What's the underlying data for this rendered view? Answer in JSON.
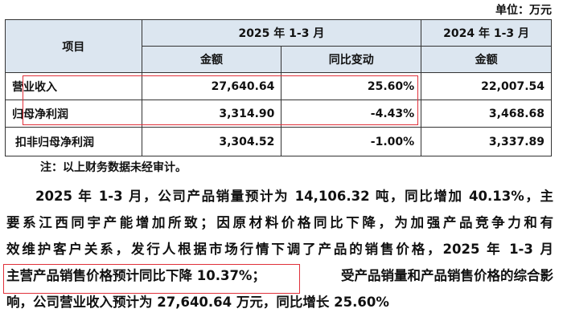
{
  "unit_label": "单位：万元",
  "table": {
    "header_item": "项目",
    "period_2025": "2025 年 1-3 月",
    "period_2024": "2024 年 1-3 月",
    "col_amount": "金额",
    "col_yoy": "同比变动",
    "col_amount_2024": "金额",
    "rows": [
      {
        "label": "营业收入",
        "amount_2025": "27,640.64",
        "yoy": "25.60%",
        "amount_2024": "22,007.54"
      },
      {
        "label": "归母净利润",
        "amount_2025": "3,314.90",
        "yoy": "-4.43%",
        "amount_2024": "3,468.68"
      },
      {
        "label": "扣非归母净利润",
        "amount_2025": "3,304.52",
        "yoy": "-1.00%",
        "amount_2024": "3,337.89"
      }
    ]
  },
  "note": "注：以上财务数据未经审计。",
  "paragraph": {
    "line1": "2025 年 1-3 月，公司产品销量预计为 14,106.32 吨，同比增加 40.13%，主",
    "line2": "要系江西同宇产能增加所致；因原材料价格同比下降，为加强产品竞争力和有",
    "line3": "效维护客户关系，发行人根据市场行情下调了产品的销售价格，2025 年 1-3 月",
    "line4_highlight": "主营产品销售价格预计同比下降 10.37%；",
    "line4_rest": "受产品销量和产品销售价格的综合影",
    "line5": "响，公司营业收入预计为 27,640.64 万元，同比增长 25.60%"
  },
  "colors": {
    "header_bg": "#dce6f0",
    "highlight_border": "#e0303a"
  }
}
